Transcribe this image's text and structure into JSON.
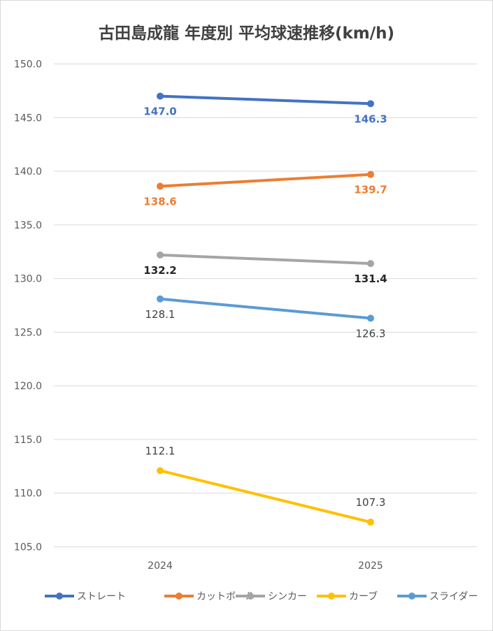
{
  "chart_data": {
    "type": "line",
    "title": "古田島成龍 年度別 平均球速推移(km/h)",
    "categories": [
      "2024",
      "2025"
    ],
    "ylim": [
      105,
      150
    ],
    "yticks": [
      "150.0",
      "145.0",
      "140.0",
      "135.0",
      "130.0",
      "125.0",
      "120.0",
      "115.0",
      "110.0",
      "105.0"
    ],
    "grid": true,
    "legend_position": "bottom",
    "series": [
      {
        "name": "ストレート",
        "values": [
          147.0,
          146.3
        ],
        "labels": [
          "147.0",
          "146.3"
        ],
        "color": "#4472c4",
        "label_color": "#4472c4",
        "label_bold": true
      },
      {
        "name": "カットボール",
        "values": [
          138.6,
          139.7
        ],
        "labels": [
          "138.6",
          "139.7"
        ],
        "color": "#ed7d31",
        "label_color": "#ed7d31",
        "label_bold": true
      },
      {
        "name": "シンカー",
        "values": [
          132.2,
          131.4
        ],
        "labels": [
          "132.2",
          "131.4"
        ],
        "color": "#a5a5a5",
        "label_color": "#262626",
        "label_bold": true
      },
      {
        "name": "カーブ",
        "values": [
          112.1,
          107.3
        ],
        "labels": [
          "112.1",
          "107.3"
        ],
        "color": "#ffc000",
        "label_color": "#404040",
        "label_bold": false
      },
      {
        "name": "スライダー",
        "values": [
          128.1,
          126.3
        ],
        "labels": [
          "128.1",
          "126.3"
        ],
        "color": "#5b9bd5",
        "label_color": "#404040",
        "label_bold": false
      }
    ]
  }
}
